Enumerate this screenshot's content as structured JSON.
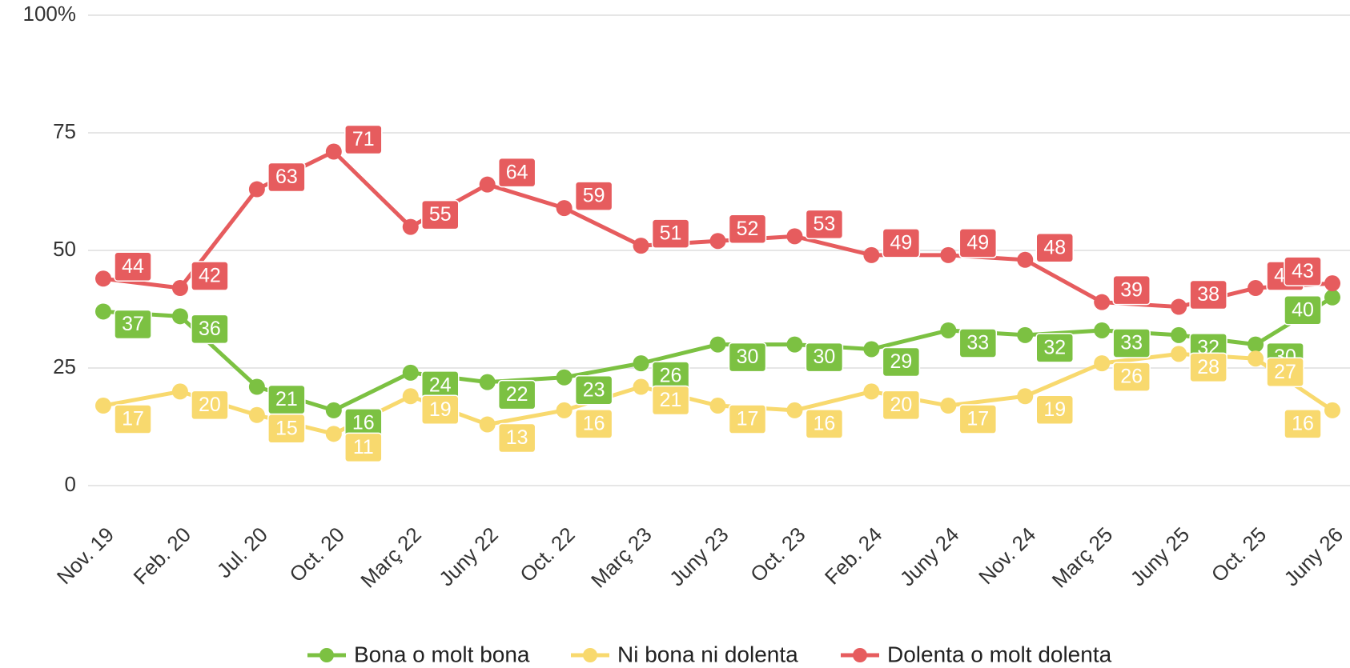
{
  "chart_data": {
    "type": "line",
    "categories": [
      "Nov. 19",
      "Feb. 20",
      "Jul. 20",
      "Oct. 20",
      "Març 22",
      "Juny 22",
      "Oct. 22",
      "Març 23",
      "Juny 23",
      "Oct. 23",
      "Feb. 24",
      "Juny 24",
      "Nov. 24",
      "Març 25",
      "Juny 25",
      "Oct. 25",
      "Juny 26"
    ],
    "series": [
      {
        "name": "Bona o molt bona",
        "color": "#7cc142",
        "values": [
          37,
          36,
          21,
          16,
          24,
          22,
          23,
          26,
          30,
          30,
          29,
          33,
          32,
          33,
          32,
          30,
          40
        ]
      },
      {
        "name": "Ni bona ni dolenta",
        "color": "#f8d96e",
        "values": [
          17,
          20,
          15,
          11,
          19,
          13,
          16,
          21,
          17,
          16,
          20,
          17,
          19,
          26,
          28,
          27,
          16
        ]
      },
      {
        "name": "Dolenta o molt dolenta",
        "color": "#e65c5e",
        "values": [
          44,
          42,
          63,
          71,
          55,
          64,
          59,
          51,
          52,
          53,
          49,
          49,
          48,
          39,
          38,
          42,
          43
        ]
      }
    ],
    "ylim": [
      0,
      100
    ],
    "yticks": [
      0,
      25,
      50,
      75,
      {
        "value": 100,
        "label": "100%"
      }
    ],
    "grid": true
  }
}
